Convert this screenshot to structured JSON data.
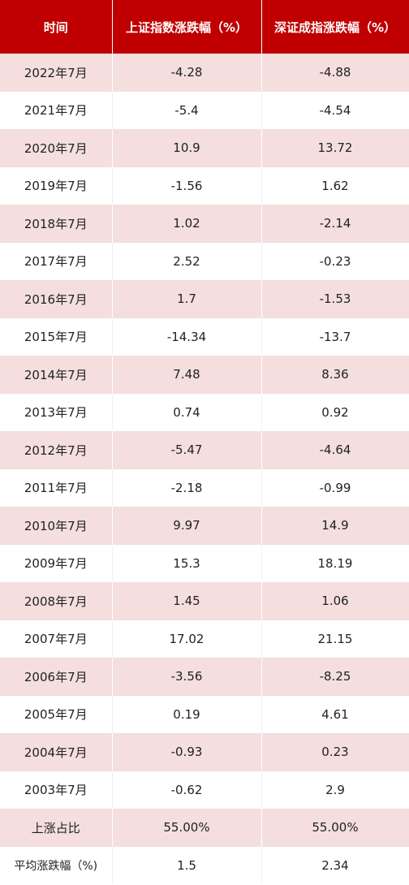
{
  "table": {
    "columns": [
      "时间",
      "上证指数涨跌幅（%）",
      "深证成指涨跌幅（%）"
    ],
    "rows": [
      [
        "2022年7月",
        "-4.28",
        "-4.88"
      ],
      [
        "2021年7月",
        "-5.4",
        "-4.54"
      ],
      [
        "2020年7月",
        "10.9",
        "13.72"
      ],
      [
        "2019年7月",
        "-1.56",
        "1.62"
      ],
      [
        "2018年7月",
        "1.02",
        "-2.14"
      ],
      [
        "2017年7月",
        "2.52",
        "-0.23"
      ],
      [
        "2016年7月",
        "1.7",
        "-1.53"
      ],
      [
        "2015年7月",
        "-14.34",
        "-13.7"
      ],
      [
        "2014年7月",
        "7.48",
        "8.36"
      ],
      [
        "2013年7月",
        "0.74",
        "0.92"
      ],
      [
        "2012年7月",
        "-5.47",
        "-4.64"
      ],
      [
        "2011年7月",
        "-2.18",
        "-0.99"
      ],
      [
        "2010年7月",
        "9.97",
        "14.9"
      ],
      [
        "2009年7月",
        "15.3",
        "18.19"
      ],
      [
        "2008年7月",
        "1.45",
        "1.06"
      ],
      [
        "2007年7月",
        "17.02",
        "21.15"
      ],
      [
        "2006年7月",
        "-3.56",
        "-8.25"
      ],
      [
        "2005年7月",
        "0.19",
        "4.61"
      ],
      [
        "2004年7月",
        "-0.93",
        "0.23"
      ],
      [
        "2003年7月",
        "-0.62",
        "2.9"
      ],
      [
        "上涨占比",
        "55.00%",
        "55.00%"
      ],
      [
        "平均涨跌幅（%)",
        "1.5",
        "2.34"
      ]
    ]
  }
}
